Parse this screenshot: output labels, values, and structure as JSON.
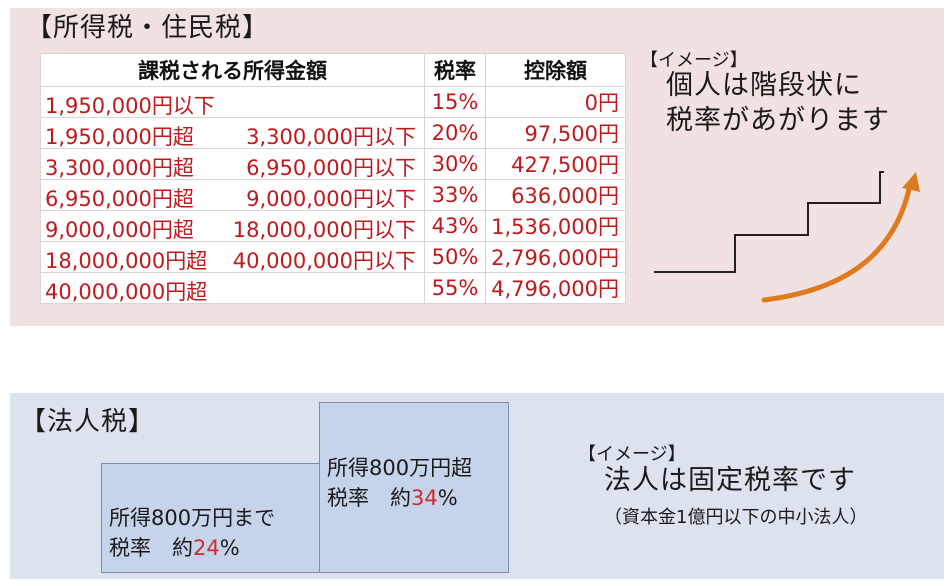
{
  "income_tax": {
    "title": "【所得税・住民税】",
    "headers": [
      "課税される所得金額",
      "税率",
      "控除額"
    ],
    "rows": [
      {
        "from": "1,950,000円以下",
        "to": "",
        "rate": "15%",
        "deduction": "0円"
      },
      {
        "from": "1,950,000円超",
        "to": "3,300,000円以下",
        "rate": "20%",
        "deduction": "97,500円"
      },
      {
        "from": "3,300,000円超",
        "to": "6,950,000円以下",
        "rate": "30%",
        "deduction": "427,500円"
      },
      {
        "from": "6,950,000円超",
        "to": "9,000,000円以下",
        "rate": "33%",
        "deduction": "636,000円"
      },
      {
        "from": "9,000,000円超",
        "to": "18,000,000円以下",
        "rate": "43%",
        "deduction": "1,536,000円"
      },
      {
        "from": "18,000,000円超",
        "to": "40,000,000円以下",
        "rate": "50%",
        "deduction": "2,796,000円"
      },
      {
        "from": "40,000,000円超",
        "to": "",
        "rate": "55%",
        "deduction": "4,796,000円"
      }
    ],
    "image_label": "【イメージ】",
    "image_text_line1": "個人は階段状に",
    "image_text_line2": "税率があがります"
  },
  "corporate_tax": {
    "title": "【法人税】",
    "box_low_line1": "所得800万円まで",
    "box_low_line2_prefix": "税率　約",
    "box_low_rate": "24",
    "box_high_line1": "所得800万円超",
    "box_high_line2_prefix": "税率　約",
    "box_high_rate": "34",
    "percent": "%",
    "image_label": "【イメージ】",
    "image_text": "法人は固定税率です",
    "note": "（資本金1億円以下の中小法人）"
  },
  "colors": {
    "accent_red": "#c0191c",
    "arrow_orange": "#e07a1f",
    "top_panel_bg": "#f1e1e2",
    "bottom_panel_bg": "#dce3ef",
    "box_fill": "#c5d3eb"
  }
}
